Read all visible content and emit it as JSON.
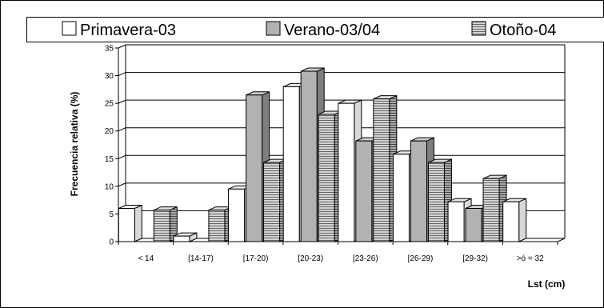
{
  "chart_data": {
    "type": "bar",
    "categories": [
      "< 14",
      "[14-17)",
      "[17-20)",
      "[20-23)",
      "[23-26)",
      "[26-29)",
      "[29-32)",
      ">ó = 32"
    ],
    "series": [
      {
        "name": "Primavera-03",
        "values": [
          6,
          1,
          9.5,
          28,
          25,
          15.8,
          7.2,
          7.2
        ],
        "color": "#ffffff",
        "pattern": "plain"
      },
      {
        "name": "Verano-03/04",
        "values": [
          0,
          0,
          26.5,
          30.8,
          18.2,
          18.2,
          6,
          0
        ],
        "color": "#b2b2b2",
        "pattern": "plain"
      },
      {
        "name": "Otoño-04",
        "values": [
          5.7,
          5.7,
          14.3,
          23,
          25.8,
          14.3,
          11.4,
          0
        ],
        "color": "#c8c8c8",
        "pattern": "horizontal-stripes"
      }
    ],
    "y_ticks": [
      0,
      5,
      10,
      15,
      20,
      25,
      30,
      35
    ],
    "ylim": [
      0,
      35
    ],
    "xlabel": "Lst (cm)",
    "ylabel": "Frecuencia relativa (%)",
    "grid": true,
    "legend_position": "top",
    "style": "3d-columns"
  }
}
